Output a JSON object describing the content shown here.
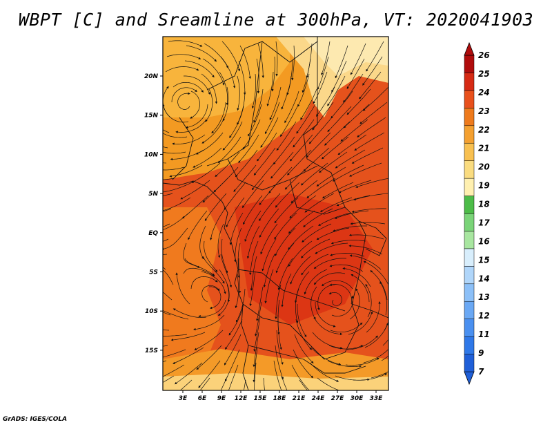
{
  "title": "WBPT [C] and Sreamline at 300hPa, VT: 2020041903",
  "credit": "GrADS: IGES/COLA",
  "axes": {
    "x_ticks": [
      "3E",
      "6E",
      "9E",
      "12E",
      "15E",
      "18E",
      "21E",
      "24E",
      "27E",
      "30E",
      "33E"
    ],
    "y_ticks": [
      "20N",
      "15N",
      "10N",
      "5N",
      "EQ",
      "5S",
      "10S",
      "15S"
    ]
  },
  "colorbar": {
    "labels": [
      "7",
      "9",
      "11",
      "12",
      "13",
      "14",
      "15",
      "16",
      "17",
      "18",
      "19",
      "20",
      "21",
      "22",
      "23",
      "24",
      "25",
      "26"
    ],
    "colors": [
      "#1f5fd8",
      "#2f78e8",
      "#4a90f0",
      "#6aa8f4",
      "#8cc0f8",
      "#b0d6fa",
      "#d8eefc",
      "#a8e6a0",
      "#7ad478",
      "#4cbc48",
      "#fff0b0",
      "#fadc80",
      "#f8c050",
      "#f4a030",
      "#ee7a1c",
      "#e8501c",
      "#d62a14",
      "#b00c0c"
    ]
  },
  "colors": {
    "warm_light": "#fce6a4",
    "warm_orange": "#f5961e",
    "warm_dark": "#e5521c",
    "warm_red": "#dc3614"
  }
}
